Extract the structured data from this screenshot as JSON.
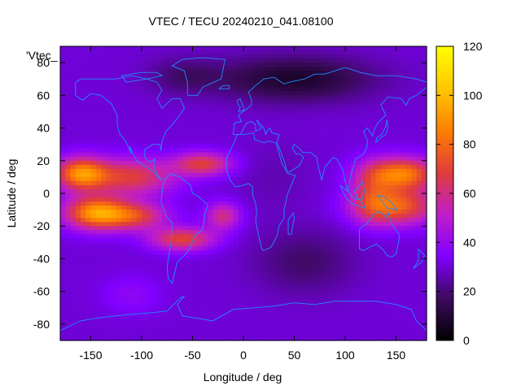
{
  "chart_data": {
    "type": "heatmap",
    "title": "VTEC / TECU 20240210_041.08100",
    "xlabel": "Longitude / deg",
    "ylabel": "Latitude / deg",
    "key_label": "'Vtec_",
    "xlim": [
      -180,
      180
    ],
    "ylim": [
      -90,
      90
    ],
    "x_ticks": [
      -150,
      -100,
      -50,
      0,
      50,
      100,
      150
    ],
    "y_ticks": [
      -80,
      -60,
      -40,
      -20,
      0,
      20,
      40,
      60,
      80
    ],
    "colorbar": {
      "range": [
        0,
        120
      ],
      "ticks": [
        0,
        20,
        40,
        60,
        80,
        100,
        120
      ],
      "palette": [
        "#000000",
        "#3c0a5e",
        "#8000ff",
        "#c01ec8",
        "#e03c3c",
        "#ff8000",
        "#ffc800",
        "#ffff00"
      ]
    },
    "grid": false,
    "continent_outline_color": "#1e8cff",
    "field": {
      "dlon": 5,
      "dlat": 2.5,
      "background_vtec": 30,
      "features": [
        {
          "lon": -160,
          "lat": 12,
          "slon": 18,
          "slat": 7,
          "vtec": 55
        },
        {
          "lon": -145,
          "lat": -12,
          "slon": 22,
          "slat": 7,
          "vtec": 60
        },
        {
          "lon": -110,
          "lat": 10,
          "slon": 30,
          "slat": 8,
          "vtec": 38
        },
        {
          "lon": -105,
          "lat": -14,
          "slon": 22,
          "slat": 6,
          "vtec": 35
        },
        {
          "lon": -40,
          "lat": 18,
          "slon": 20,
          "slat": 5,
          "vtec": 38
        },
        {
          "lon": -60,
          "lat": -28,
          "slon": 22,
          "slat": 5,
          "vtec": 40
        },
        {
          "lon": -20,
          "lat": -14,
          "slon": 12,
          "slat": 6,
          "vtec": 30
        },
        {
          "lon": 155,
          "lat": 12,
          "slon": 25,
          "slat": 7,
          "vtec": 55
        },
        {
          "lon": 150,
          "lat": -8,
          "slon": 28,
          "slat": 8,
          "vtec": 48
        },
        {
          "lon": 125,
          "lat": 0,
          "slon": 14,
          "slat": 12,
          "vtec": 20
        },
        {
          "lon": 50,
          "lat": 70,
          "slon": 55,
          "slat": 10,
          "vtec": -22
        },
        {
          "lon": -60,
          "lat": 72,
          "slon": 25,
          "slat": 8,
          "vtec": -10
        },
        {
          "lon": 60,
          "lat": -42,
          "slon": 35,
          "slat": 14,
          "vtec": -12
        },
        {
          "lon": -110,
          "lat": -62,
          "slon": 20,
          "slat": 8,
          "vtec": 8
        },
        {
          "lon": 30,
          "lat": 10,
          "slon": 25,
          "slat": 15,
          "vtec": -4
        }
      ]
    }
  }
}
